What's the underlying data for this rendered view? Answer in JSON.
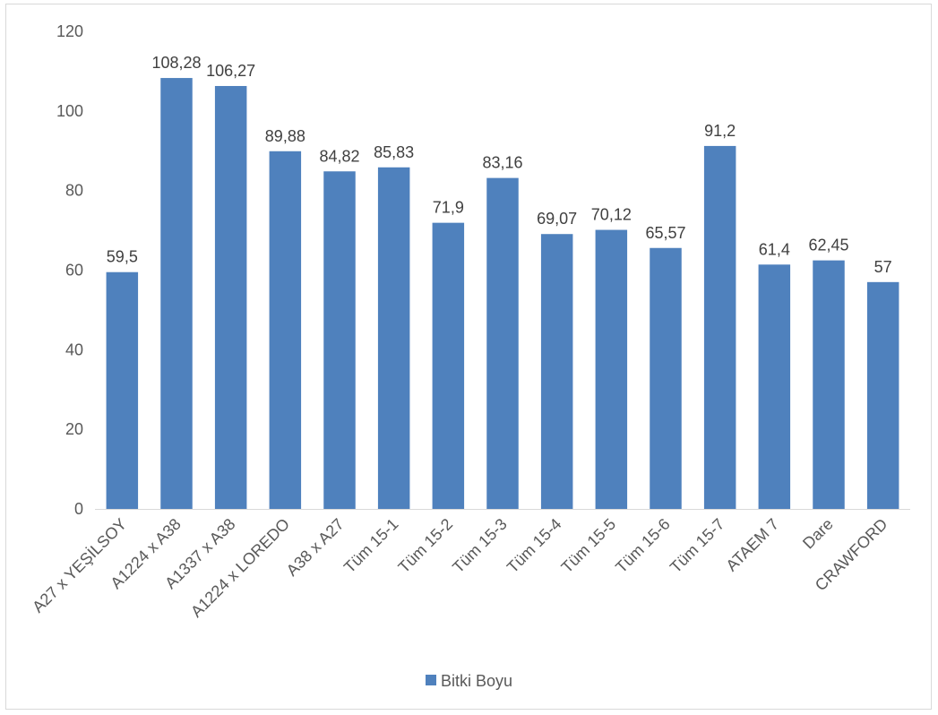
{
  "chart_data": {
    "type": "bar",
    "title": "",
    "xlabel": "",
    "ylabel": "",
    "ylim": [
      0,
      120
    ],
    "yticks": [
      0,
      20,
      40,
      60,
      80,
      100,
      120
    ],
    "grid": false,
    "legend_position": "bottom",
    "categories": [
      "A27 x YEŞİLSOY",
      "A1224 x A38",
      "A1337 x A38",
      "A1224 x LOREDO",
      "A38 x A27",
      "Tüm 15-1",
      "Tüm 15-2",
      "Tüm 15-3",
      "Tüm 15-4",
      "Tüm 15-5",
      "Tüm 15-6",
      "Tüm 15-7",
      "ATAEM 7",
      "Dare",
      "CRAWFORD"
    ],
    "series": [
      {
        "name": "Bitki Boyu",
        "color": "#4f81bd",
        "values": [
          59.5,
          108.28,
          106.27,
          89.88,
          84.82,
          85.83,
          71.9,
          83.16,
          69.07,
          70.12,
          65.57,
          91.2,
          61.4,
          62.45,
          57
        ],
        "labels": [
          "59,5",
          "108,28",
          "106,27",
          "89,88",
          "84,82",
          "85,83",
          "71,9",
          "83,16",
          "69,07",
          "70,12",
          "65,57",
          "91,2",
          "61,4",
          "62,45",
          "57"
        ]
      }
    ]
  }
}
